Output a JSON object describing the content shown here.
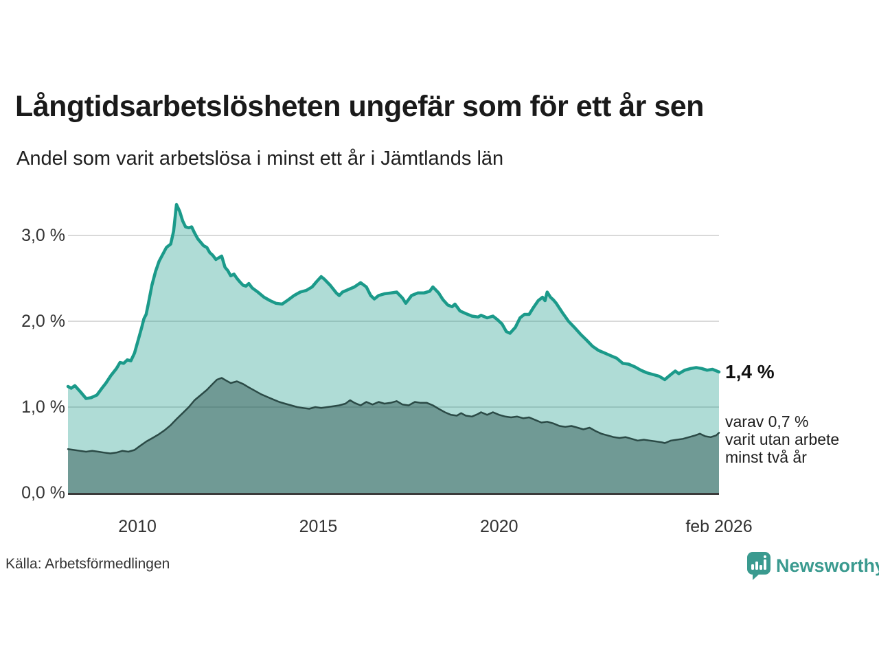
{
  "chart_data": {
    "type": "area",
    "title": "Långtidsarbetslösheten ungefär som för ett år sen",
    "subtitle": "Andel som varit arbetslösa i minst ett år i Jämtlands län",
    "xlim": [
      2008.08,
      2026.08
    ],
    "ylim": [
      0,
      3.5
    ],
    "grid": "horizontal",
    "legend": "none",
    "y_ticks": [
      {
        "label": "0,0 %",
        "value": 0
      },
      {
        "label": "1,0 %",
        "value": 1
      },
      {
        "label": "2,0 %",
        "value": 2
      },
      {
        "label": "3,0 %",
        "value": 3
      }
    ],
    "x_ticks": [
      {
        "label": "2010",
        "value": 2010
      },
      {
        "label": "2015",
        "value": 2015
      },
      {
        "label": "2020",
        "value": 2020
      },
      {
        "label": "feb 2026",
        "value": 2026.08
      }
    ],
    "colors": {
      "grid": "#d9d9d9",
      "axis": "#3b3b3b"
    },
    "series": [
      {
        "id": "arbetslosa-minst-ett-ar",
        "line_color": "#1b9a8a",
        "fill_color": "rgba(27,154,138,0.35)",
        "line_width": 4.5,
        "end_value": 1.4,
        "points": [
          [
            2008.08,
            1.24
          ],
          [
            2008.17,
            1.22
          ],
          [
            2008.27,
            1.25
          ],
          [
            2008.42,
            1.18
          ],
          [
            2008.58,
            1.1
          ],
          [
            2008.72,
            1.11
          ],
          [
            2008.88,
            1.14
          ],
          [
            2009.0,
            1.21
          ],
          [
            2009.13,
            1.28
          ],
          [
            2009.27,
            1.37
          ],
          [
            2009.42,
            1.45
          ],
          [
            2009.52,
            1.52
          ],
          [
            2009.62,
            1.51
          ],
          [
            2009.72,
            1.55
          ],
          [
            2009.82,
            1.54
          ],
          [
            2009.92,
            1.63
          ],
          [
            2010.02,
            1.78
          ],
          [
            2010.12,
            1.93
          ],
          [
            2010.18,
            2.03
          ],
          [
            2010.24,
            2.08
          ],
          [
            2010.3,
            2.2
          ],
          [
            2010.4,
            2.42
          ],
          [
            2010.5,
            2.58
          ],
          [
            2010.6,
            2.7
          ],
          [
            2010.7,
            2.78
          ],
          [
            2010.8,
            2.86
          ],
          [
            2010.92,
            2.9
          ],
          [
            2011.0,
            3.05
          ],
          [
            2011.08,
            3.36
          ],
          [
            2011.17,
            3.28
          ],
          [
            2011.25,
            3.17
          ],
          [
            2011.33,
            3.1
          ],
          [
            2011.42,
            3.09
          ],
          [
            2011.5,
            3.1
          ],
          [
            2011.58,
            3.03
          ],
          [
            2011.67,
            2.96
          ],
          [
            2011.75,
            2.92
          ],
          [
            2011.83,
            2.88
          ],
          [
            2011.92,
            2.86
          ],
          [
            2012.0,
            2.8
          ],
          [
            2012.08,
            2.77
          ],
          [
            2012.17,
            2.72
          ],
          [
            2012.25,
            2.74
          ],
          [
            2012.33,
            2.76
          ],
          [
            2012.42,
            2.63
          ],
          [
            2012.5,
            2.59
          ],
          [
            2012.58,
            2.53
          ],
          [
            2012.67,
            2.55
          ],
          [
            2012.75,
            2.5
          ],
          [
            2012.83,
            2.46
          ],
          [
            2012.92,
            2.42
          ],
          [
            2013.0,
            2.41
          ],
          [
            2013.08,
            2.44
          ],
          [
            2013.17,
            2.39
          ],
          [
            2013.33,
            2.34
          ],
          [
            2013.5,
            2.28
          ],
          [
            2013.67,
            2.24
          ],
          [
            2013.83,
            2.21
          ],
          [
            2014.0,
            2.2
          ],
          [
            2014.17,
            2.25
          ],
          [
            2014.33,
            2.3
          ],
          [
            2014.5,
            2.34
          ],
          [
            2014.67,
            2.36
          ],
          [
            2014.83,
            2.4
          ],
          [
            2014.95,
            2.46
          ],
          [
            2015.08,
            2.52
          ],
          [
            2015.17,
            2.49
          ],
          [
            2015.33,
            2.42
          ],
          [
            2015.5,
            2.33
          ],
          [
            2015.58,
            2.3
          ],
          [
            2015.67,
            2.34
          ],
          [
            2015.83,
            2.37
          ],
          [
            2016.0,
            2.4
          ],
          [
            2016.17,
            2.45
          ],
          [
            2016.33,
            2.4
          ],
          [
            2016.45,
            2.3
          ],
          [
            2016.55,
            2.26
          ],
          [
            2016.67,
            2.3
          ],
          [
            2016.83,
            2.32
          ],
          [
            2017.0,
            2.33
          ],
          [
            2017.17,
            2.34
          ],
          [
            2017.33,
            2.27
          ],
          [
            2017.42,
            2.21
          ],
          [
            2017.58,
            2.3
          ],
          [
            2017.75,
            2.33
          ],
          [
            2017.92,
            2.33
          ],
          [
            2018.08,
            2.35
          ],
          [
            2018.17,
            2.4
          ],
          [
            2018.33,
            2.33
          ],
          [
            2018.45,
            2.25
          ],
          [
            2018.58,
            2.19
          ],
          [
            2018.7,
            2.17
          ],
          [
            2018.78,
            2.2
          ],
          [
            2018.92,
            2.12
          ],
          [
            2019.08,
            2.09
          ],
          [
            2019.25,
            2.06
          ],
          [
            2019.42,
            2.05
          ],
          [
            2019.5,
            2.07
          ],
          [
            2019.67,
            2.04
          ],
          [
            2019.83,
            2.06
          ],
          [
            2019.95,
            2.02
          ],
          [
            2020.08,
            1.97
          ],
          [
            2020.2,
            1.88
          ],
          [
            2020.3,
            1.86
          ],
          [
            2020.45,
            1.93
          ],
          [
            2020.58,
            2.04
          ],
          [
            2020.7,
            2.08
          ],
          [
            2020.83,
            2.08
          ],
          [
            2020.95,
            2.16
          ],
          [
            2021.08,
            2.24
          ],
          [
            2021.2,
            2.28
          ],
          [
            2021.27,
            2.24
          ],
          [
            2021.33,
            2.34
          ],
          [
            2021.42,
            2.28
          ],
          [
            2021.5,
            2.25
          ],
          [
            2021.58,
            2.21
          ],
          [
            2021.75,
            2.1
          ],
          [
            2021.92,
            2.0
          ],
          [
            2022.08,
            1.93
          ],
          [
            2022.25,
            1.85
          ],
          [
            2022.42,
            1.78
          ],
          [
            2022.58,
            1.71
          ],
          [
            2022.75,
            1.66
          ],
          [
            2022.92,
            1.63
          ],
          [
            2023.08,
            1.6
          ],
          [
            2023.25,
            1.57
          ],
          [
            2023.42,
            1.51
          ],
          [
            2023.58,
            1.5
          ],
          [
            2023.75,
            1.47
          ],
          [
            2023.92,
            1.43
          ],
          [
            2024.08,
            1.4
          ],
          [
            2024.25,
            1.38
          ],
          [
            2024.42,
            1.36
          ],
          [
            2024.58,
            1.32
          ],
          [
            2024.75,
            1.38
          ],
          [
            2024.87,
            1.42
          ],
          [
            2024.97,
            1.39
          ],
          [
            2025.13,
            1.43
          ],
          [
            2025.3,
            1.45
          ],
          [
            2025.45,
            1.46
          ],
          [
            2025.6,
            1.45
          ],
          [
            2025.75,
            1.43
          ],
          [
            2025.9,
            1.44
          ],
          [
            2026.08,
            1.41
          ]
        ]
      },
      {
        "id": "utan-arbete-minst-tva-ar",
        "line_color": "#2b4a46",
        "fill_color": "rgba(38,77,72,0.46)",
        "line_width": 2.5,
        "end_value": 0.7,
        "points": [
          [
            2008.08,
            0.51
          ],
          [
            2008.25,
            0.5
          ],
          [
            2008.42,
            0.49
          ],
          [
            2008.58,
            0.48
          ],
          [
            2008.75,
            0.49
          ],
          [
            2008.92,
            0.48
          ],
          [
            2009.08,
            0.47
          ],
          [
            2009.25,
            0.46
          ],
          [
            2009.42,
            0.47
          ],
          [
            2009.58,
            0.49
          ],
          [
            2009.75,
            0.48
          ],
          [
            2009.92,
            0.5
          ],
          [
            2010.08,
            0.55
          ],
          [
            2010.25,
            0.6
          ],
          [
            2010.42,
            0.64
          ],
          [
            2010.58,
            0.68
          ],
          [
            2010.75,
            0.73
          ],
          [
            2010.92,
            0.79
          ],
          [
            2011.08,
            0.86
          ],
          [
            2011.25,
            0.93
          ],
          [
            2011.42,
            1.0
          ],
          [
            2011.58,
            1.08
          ],
          [
            2011.75,
            1.14
          ],
          [
            2011.92,
            1.2
          ],
          [
            2012.08,
            1.27
          ],
          [
            2012.2,
            1.32
          ],
          [
            2012.33,
            1.34
          ],
          [
            2012.45,
            1.31
          ],
          [
            2012.58,
            1.28
          ],
          [
            2012.75,
            1.3
          ],
          [
            2012.92,
            1.27
          ],
          [
            2013.08,
            1.23
          ],
          [
            2013.25,
            1.19
          ],
          [
            2013.42,
            1.15
          ],
          [
            2013.58,
            1.12
          ],
          [
            2013.75,
            1.09
          ],
          [
            2013.92,
            1.06
          ],
          [
            2014.08,
            1.04
          ],
          [
            2014.25,
            1.02
          ],
          [
            2014.42,
            1.0
          ],
          [
            2014.58,
            0.99
          ],
          [
            2014.75,
            0.98
          ],
          [
            2014.92,
            1.0
          ],
          [
            2015.08,
            0.99
          ],
          [
            2015.25,
            1.0
          ],
          [
            2015.42,
            1.01
          ],
          [
            2015.58,
            1.02
          ],
          [
            2015.75,
            1.04
          ],
          [
            2015.88,
            1.08
          ],
          [
            2016.0,
            1.05
          ],
          [
            2016.17,
            1.02
          ],
          [
            2016.33,
            1.06
          ],
          [
            2016.5,
            1.03
          ],
          [
            2016.67,
            1.06
          ],
          [
            2016.83,
            1.04
          ],
          [
            2017.0,
            1.05
          ],
          [
            2017.17,
            1.07
          ],
          [
            2017.33,
            1.03
          ],
          [
            2017.5,
            1.02
          ],
          [
            2017.67,
            1.06
          ],
          [
            2017.83,
            1.05
          ],
          [
            2018.0,
            1.05
          ],
          [
            2018.17,
            1.02
          ],
          [
            2018.33,
            0.98
          ],
          [
            2018.5,
            0.94
          ],
          [
            2018.67,
            0.91
          ],
          [
            2018.83,
            0.9
          ],
          [
            2018.95,
            0.93
          ],
          [
            2019.08,
            0.9
          ],
          [
            2019.25,
            0.89
          ],
          [
            2019.42,
            0.92
          ],
          [
            2019.5,
            0.94
          ],
          [
            2019.67,
            0.91
          ],
          [
            2019.83,
            0.94
          ],
          [
            2020.0,
            0.91
          ],
          [
            2020.17,
            0.89
          ],
          [
            2020.33,
            0.88
          ],
          [
            2020.5,
            0.89
          ],
          [
            2020.67,
            0.87
          ],
          [
            2020.83,
            0.88
          ],
          [
            2021.0,
            0.85
          ],
          [
            2021.17,
            0.82
          ],
          [
            2021.33,
            0.83
          ],
          [
            2021.5,
            0.81
          ],
          [
            2021.67,
            0.78
          ],
          [
            2021.83,
            0.77
          ],
          [
            2022.0,
            0.78
          ],
          [
            2022.17,
            0.76
          ],
          [
            2022.33,
            0.74
          ],
          [
            2022.5,
            0.76
          ],
          [
            2022.67,
            0.72
          ],
          [
            2022.83,
            0.69
          ],
          [
            2023.0,
            0.67
          ],
          [
            2023.17,
            0.65
          ],
          [
            2023.33,
            0.64
          ],
          [
            2023.5,
            0.65
          ],
          [
            2023.67,
            0.63
          ],
          [
            2023.83,
            0.61
          ],
          [
            2024.0,
            0.62
          ],
          [
            2024.17,
            0.61
          ],
          [
            2024.33,
            0.6
          ],
          [
            2024.5,
            0.59
          ],
          [
            2024.58,
            0.58
          ],
          [
            2024.75,
            0.61
          ],
          [
            2024.92,
            0.62
          ],
          [
            2025.08,
            0.63
          ],
          [
            2025.25,
            0.65
          ],
          [
            2025.42,
            0.67
          ],
          [
            2025.55,
            0.69
          ],
          [
            2025.7,
            0.66
          ],
          [
            2025.85,
            0.65
          ],
          [
            2026.0,
            0.67
          ],
          [
            2026.08,
            0.7
          ]
        ]
      }
    ],
    "annotations": {
      "end_value_label": "1,4 %",
      "sub_label_lines": [
        "varav 0,7 %",
        "varit utan arbete",
        "minst två år"
      ]
    }
  },
  "footer": {
    "source": "Källa: Arbetsförmedlingen",
    "brand": "Newsworthy",
    "brand_color": "#3a9a8f"
  }
}
